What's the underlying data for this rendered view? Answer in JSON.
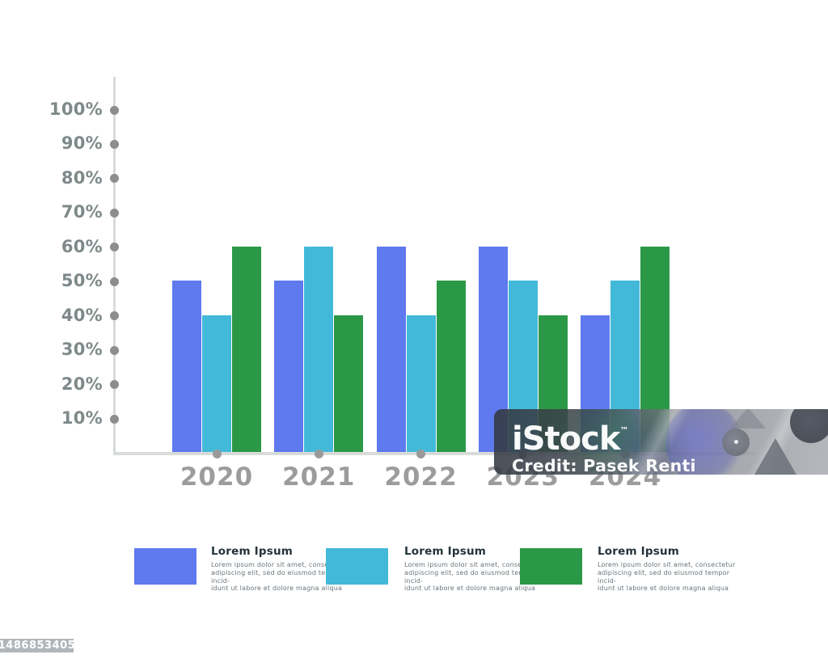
{
  "chart_data": {
    "type": "bar",
    "title": "",
    "categories": [
      "2020",
      "2021",
      "2022",
      "2023",
      "2024"
    ],
    "series": [
      {
        "name": "Lorem Ipsum",
        "color": "#5f79ef",
        "values": [
          50,
          50,
          60,
          60,
          40
        ]
      },
      {
        "name": "Lorem Ipsum",
        "color": "#43b9d9",
        "values": [
          40,
          60,
          40,
          50,
          50
        ]
      },
      {
        "name": "Lorem Ipsum",
        "color": "#2b9847",
        "values": [
          60,
          40,
          50,
          40,
          60
        ]
      }
    ],
    "xlabel": "",
    "ylabel": "",
    "ylim": [
      0,
      100
    ],
    "ytick_labels": [
      "100%",
      "90%",
      "80%",
      "70%",
      "60%",
      "50%",
      "40%",
      "30%",
      "20%",
      "10%"
    ],
    "grid": false,
    "legend_position": "bottom",
    "axis_color": "#d8dcd8",
    "tick_dot_color": "#8d8d8d",
    "baseline_dot_color": "#9a9a9a",
    "tick_label_color": "#7e8989",
    "year_label_color": "#9c9c9c"
  },
  "legend": {
    "items": [
      {
        "color": "#5f79ef",
        "title": "Lorem Ipsum",
        "line1": "Lorem ipsum dolor sit amet, consectetur",
        "line2": "adipiscing elit, sed do eiusmod tempor incid-",
        "line3": "idunt ut labore et dolore magna aliqua"
      },
      {
        "color": "#43b9d9",
        "title": "Lorem Ipsum",
        "line1": "Lorem ipsum dolor sit amet, consectetur",
        "line2": "adipiscing elit, sed do eiusmod tempor incid-",
        "line3": "idunt ut labore et dolore magna aliqua"
      },
      {
        "color": "#2b9847",
        "title": "Lorem Ipsum",
        "line1": "Lorem ipsum dolor sit amet, consectetur",
        "line2": "adipiscing elit, sed do eiusmod tempor incid-",
        "line3": "idunt ut labore et dolore magna aliqua"
      }
    ]
  },
  "watermark": {
    "brand": "iStock",
    "trademark": "™",
    "credit": "Credit: Pasek Renti",
    "asset_id": "1486853405"
  }
}
